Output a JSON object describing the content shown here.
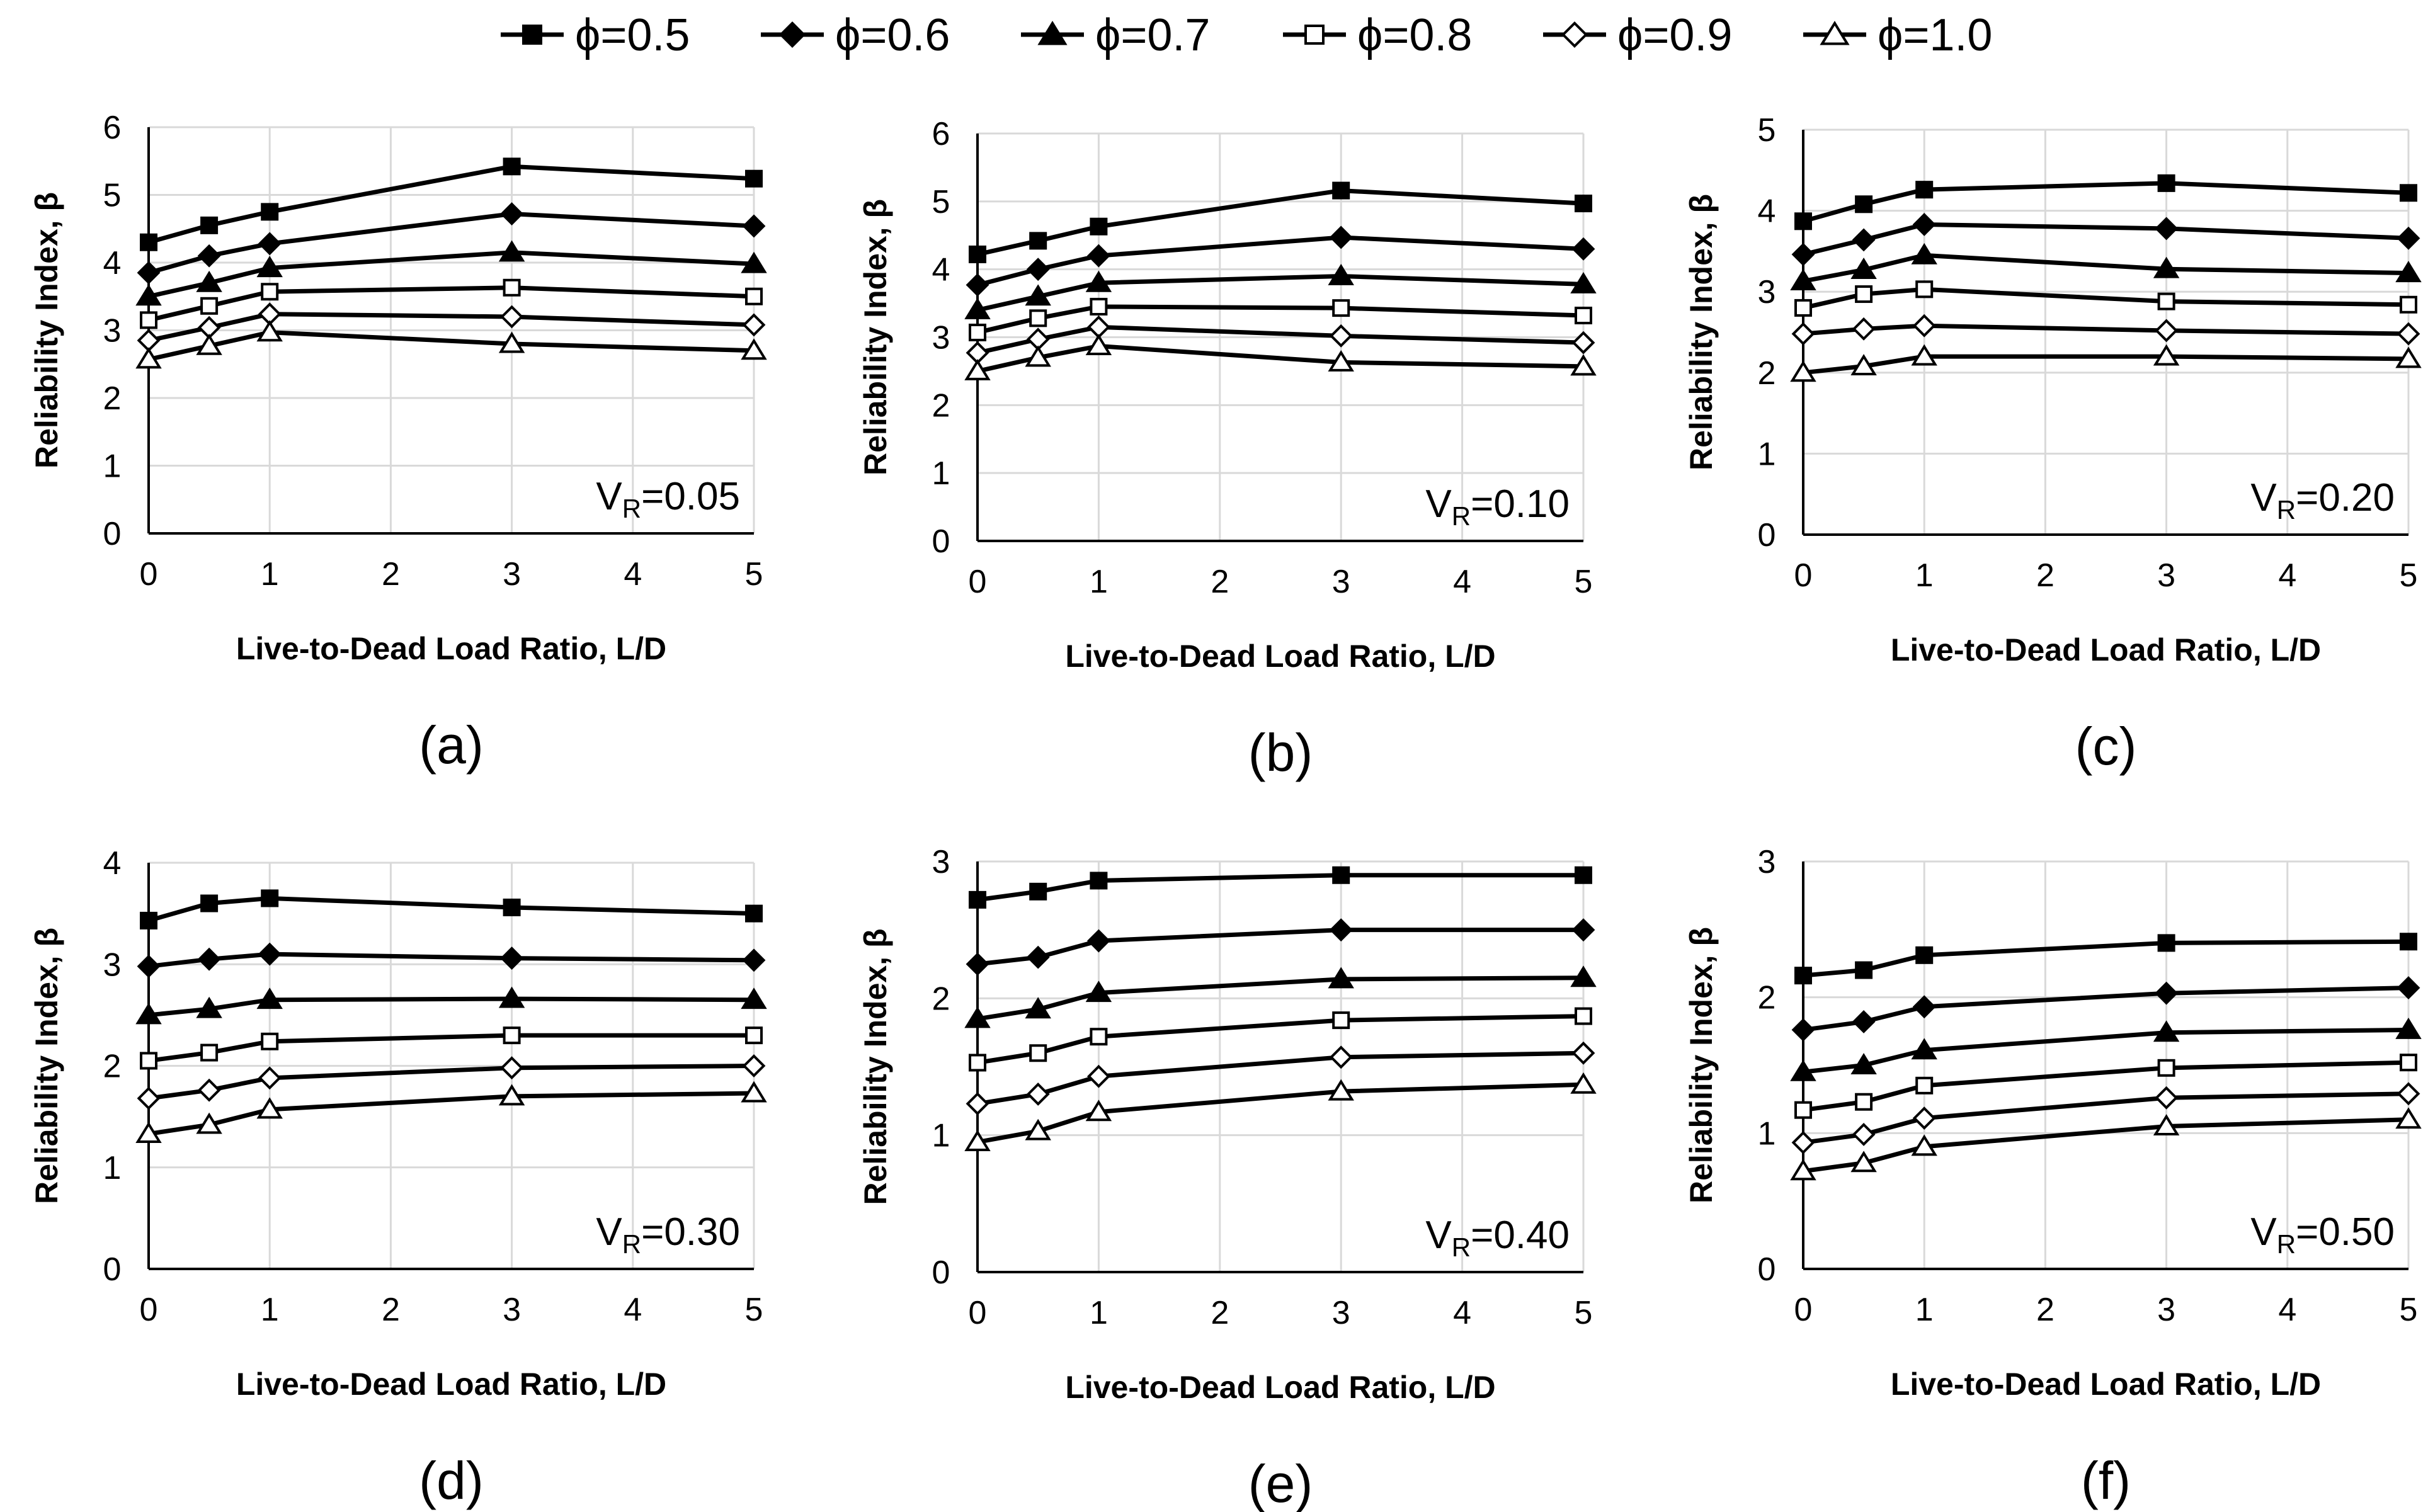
{
  "legend": [
    {
      "label": "ϕ=0.5",
      "marker": "square",
      "fill": "#000000"
    },
    {
      "label": "ϕ=0.6",
      "marker": "diamond",
      "fill": "#000000"
    },
    {
      "label": "ϕ=0.7",
      "marker": "triangle",
      "fill": "#000000"
    },
    {
      "label": "ϕ=0.8",
      "marker": "square",
      "fill": "#ffffff"
    },
    {
      "label": "ϕ=0.9",
      "marker": "diamond",
      "fill": "#ffffff"
    },
    {
      "label": "ϕ=1.0",
      "marker": "triangle",
      "fill": "#ffffff"
    }
  ],
  "colors": {
    "line": "#000000",
    "grid": "#d9d9d9",
    "background": "#ffffff"
  },
  "chart_data": [
    {
      "type": "line",
      "panel": "(a)",
      "annotation": {
        "main": "V",
        "sub": "R",
        "value": "=0.05"
      },
      "xlabel": "Live-to-Dead Load Ratio, L/D",
      "ylabel": "Reliability Index, β",
      "x": [
        0,
        0.5,
        1,
        3,
        5
      ],
      "xlim": [
        0,
        5
      ],
      "xticks": [
        0,
        1,
        2,
        3,
        4,
        5
      ],
      "ylim": [
        0,
        6
      ],
      "yticks": [
        0,
        1,
        2,
        3,
        4,
        5,
        6
      ],
      "grid": true,
      "series": [
        {
          "name": "ϕ=0.5",
          "values": [
            4.3,
            4.55,
            4.75,
            5.42,
            5.24
          ]
        },
        {
          "name": "ϕ=0.6",
          "values": [
            3.85,
            4.1,
            4.28,
            4.72,
            4.54
          ]
        },
        {
          "name": "ϕ=0.7",
          "values": [
            3.5,
            3.7,
            3.92,
            4.15,
            3.98
          ]
        },
        {
          "name": "ϕ=0.8",
          "values": [
            3.15,
            3.36,
            3.57,
            3.63,
            3.5
          ]
        },
        {
          "name": "ϕ=0.9",
          "values": [
            2.85,
            3.04,
            3.24,
            3.2,
            3.08
          ]
        },
        {
          "name": "ϕ=1.0",
          "values": [
            2.57,
            2.77,
            2.97,
            2.8,
            2.7
          ]
        }
      ]
    },
    {
      "type": "line",
      "panel": "(b)",
      "annotation": {
        "main": "V",
        "sub": "R",
        "value": "=0.10"
      },
      "xlabel": "Live-to-Dead Load Ratio, L/D",
      "ylabel": "Reliability Index, β",
      "x": [
        0,
        0.5,
        1,
        3,
        5
      ],
      "xlim": [
        0,
        5
      ],
      "xticks": [
        0,
        1,
        2,
        3,
        4,
        5
      ],
      "ylim": [
        0,
        6
      ],
      "yticks": [
        0,
        1,
        2,
        3,
        4,
        5,
        6
      ],
      "grid": true,
      "series": [
        {
          "name": "ϕ=0.5",
          "values": [
            4.22,
            4.42,
            4.63,
            5.16,
            4.97
          ]
        },
        {
          "name": "ϕ=0.6",
          "values": [
            3.77,
            4.0,
            4.2,
            4.47,
            4.3
          ]
        },
        {
          "name": "ϕ=0.7",
          "values": [
            3.4,
            3.6,
            3.8,
            3.9,
            3.78
          ]
        },
        {
          "name": "ϕ=0.8",
          "values": [
            3.07,
            3.28,
            3.45,
            3.43,
            3.32
          ]
        },
        {
          "name": "ϕ=0.9",
          "values": [
            2.77,
            2.97,
            3.15,
            3.02,
            2.92
          ]
        },
        {
          "name": "ϕ=1.0",
          "values": [
            2.5,
            2.7,
            2.87,
            2.63,
            2.57
          ]
        }
      ]
    },
    {
      "type": "line",
      "panel": "(c)",
      "annotation": {
        "main": "V",
        "sub": "R",
        "value": "=0.20"
      },
      "xlabel": "Live-to-Dead Load Ratio, L/D",
      "ylabel": "Reliability Index, β",
      "x": [
        0,
        0.5,
        1,
        3,
        5
      ],
      "xlim": [
        0,
        5
      ],
      "xticks": [
        0,
        1,
        2,
        3,
        4,
        5
      ],
      "ylim": [
        0,
        5
      ],
      "yticks": [
        0,
        1,
        2,
        3,
        4,
        5
      ],
      "grid": true,
      "series": [
        {
          "name": "ϕ=0.5",
          "values": [
            3.87,
            4.08,
            4.26,
            4.34,
            4.22
          ]
        },
        {
          "name": "ϕ=0.6",
          "values": [
            3.46,
            3.64,
            3.83,
            3.78,
            3.66
          ]
        },
        {
          "name": "ϕ=0.7",
          "values": [
            3.13,
            3.27,
            3.45,
            3.28,
            3.23
          ]
        },
        {
          "name": "ϕ=0.8",
          "values": [
            2.8,
            2.97,
            3.03,
            2.88,
            2.84
          ]
        },
        {
          "name": "ϕ=0.9",
          "values": [
            2.48,
            2.54,
            2.58,
            2.52,
            2.48
          ]
        },
        {
          "name": "ϕ=1.0",
          "values": [
            2.0,
            2.08,
            2.2,
            2.2,
            2.17
          ]
        }
      ]
    },
    {
      "type": "line",
      "panel": "(d)",
      "annotation": {
        "main": "V",
        "sub": "R",
        "value": "=0.30"
      },
      "xlabel": "Live-to-Dead Load Ratio, L/D",
      "ylabel": "Reliability Index, β",
      "x": [
        0,
        0.5,
        1,
        3,
        5
      ],
      "xlim": [
        0,
        5
      ],
      "xticks": [
        0,
        1,
        2,
        3,
        4,
        5
      ],
      "ylim": [
        0,
        4
      ],
      "yticks": [
        0,
        1,
        2,
        3,
        4
      ],
      "grid": true,
      "series": [
        {
          "name": "ϕ=0.5",
          "values": [
            3.43,
            3.6,
            3.65,
            3.56,
            3.5
          ]
        },
        {
          "name": "ϕ=0.6",
          "values": [
            2.98,
            3.05,
            3.1,
            3.06,
            3.04
          ]
        },
        {
          "name": "ϕ=0.7",
          "values": [
            2.5,
            2.56,
            2.65,
            2.66,
            2.65
          ]
        },
        {
          "name": "ϕ=0.8",
          "values": [
            2.05,
            2.13,
            2.24,
            2.3,
            2.3
          ]
        },
        {
          "name": "ϕ=0.9",
          "values": [
            1.68,
            1.76,
            1.88,
            1.98,
            2.0
          ]
        },
        {
          "name": "ϕ=1.0",
          "values": [
            1.33,
            1.42,
            1.57,
            1.7,
            1.73
          ]
        }
      ]
    },
    {
      "type": "line",
      "panel": "(e)",
      "annotation": {
        "main": "V",
        "sub": "R",
        "value": "=0.40"
      },
      "xlabel": "Live-to-Dead Load Ratio, L/D",
      "ylabel": "Reliability Index, β",
      "x": [
        0,
        0.5,
        1,
        3,
        5
      ],
      "xlim": [
        0,
        5
      ],
      "xticks": [
        0,
        1,
        2,
        3,
        4,
        5
      ],
      "ylim": [
        0,
        3
      ],
      "yticks": [
        0,
        1,
        2,
        3
      ],
      "grid": true,
      "series": [
        {
          "name": "ϕ=0.5",
          "values": [
            2.72,
            2.78,
            2.86,
            2.9,
            2.9
          ]
        },
        {
          "name": "ϕ=0.6",
          "values": [
            2.25,
            2.3,
            2.42,
            2.5,
            2.5
          ]
        },
        {
          "name": "ϕ=0.7",
          "values": [
            1.85,
            1.92,
            2.04,
            2.14,
            2.15
          ]
        },
        {
          "name": "ϕ=0.8",
          "values": [
            1.53,
            1.6,
            1.72,
            1.84,
            1.87
          ]
        },
        {
          "name": "ϕ=0.9",
          "values": [
            1.23,
            1.3,
            1.43,
            1.57,
            1.6
          ]
        },
        {
          "name": "ϕ=1.0",
          "values": [
            0.95,
            1.03,
            1.17,
            1.32,
            1.37
          ]
        }
      ]
    },
    {
      "type": "line",
      "panel": "(f)",
      "annotation": {
        "main": "V",
        "sub": "R",
        "value": "=0.50"
      },
      "xlabel": "Live-to-Dead Load Ratio, L/D",
      "ylabel": "Reliability Index, β",
      "x": [
        0,
        0.5,
        1,
        3,
        5
      ],
      "xlim": [
        0,
        5
      ],
      "xticks": [
        0,
        1,
        2,
        3,
        4,
        5
      ],
      "ylim": [
        0,
        3
      ],
      "yticks": [
        0,
        1,
        2,
        3
      ],
      "grid": true,
      "series": [
        {
          "name": "ϕ=0.5",
          "values": [
            2.16,
            2.2,
            2.31,
            2.4,
            2.41
          ]
        },
        {
          "name": "ϕ=0.6",
          "values": [
            1.76,
            1.82,
            1.93,
            2.03,
            2.07
          ]
        },
        {
          "name": "ϕ=0.7",
          "values": [
            1.45,
            1.5,
            1.61,
            1.74,
            1.76
          ]
        },
        {
          "name": "ϕ=0.8",
          "values": [
            1.17,
            1.23,
            1.35,
            1.48,
            1.52
          ]
        },
        {
          "name": "ϕ=0.9",
          "values": [
            0.93,
            0.99,
            1.11,
            1.26,
            1.29
          ]
        },
        {
          "name": "ϕ=1.0",
          "values": [
            0.72,
            0.78,
            0.9,
            1.05,
            1.1
          ]
        }
      ]
    }
  ]
}
